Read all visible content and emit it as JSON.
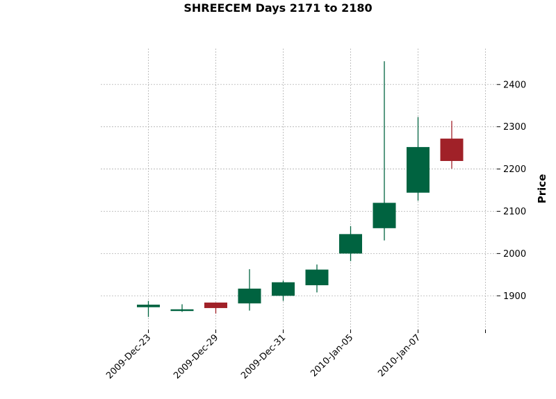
{
  "chart_data": {
    "type": "candlestick",
    "title": "SHREECEM Days 2171 to 2180",
    "ylabel": "Price",
    "xlabel": "",
    "ylim": [
      1820,
      2485
    ],
    "grid": true,
    "y_ticks": [
      1900,
      2000,
      2100,
      2200,
      2300,
      2400
    ],
    "x_tick_labels": [
      "2009-Dec-23",
      "2009-Dec-29",
      "2009-Dec-31",
      "2010-Jan-05",
      "2010-Jan-07",
      ""
    ],
    "colors": {
      "up": "#006340",
      "down": "#a02128"
    },
    "candles": [
      {
        "open": 1873,
        "high": 1888,
        "low": 1850,
        "close": 1879
      },
      {
        "open": 1864,
        "high": 1880,
        "low": 1862,
        "close": 1868
      },
      {
        "open": 1884,
        "high": 1884,
        "low": 1858,
        "close": 1871
      },
      {
        "open": 1882,
        "high": 1963,
        "low": 1865,
        "close": 1917
      },
      {
        "open": 1900,
        "high": 1936,
        "low": 1888,
        "close": 1932
      },
      {
        "open": 1925,
        "high": 1974,
        "low": 1908,
        "close": 1962
      },
      {
        "open": 2000,
        "high": 2065,
        "low": 1982,
        "close": 2046
      },
      {
        "open": 2060,
        "high": 2455,
        "low": 2031,
        "close": 2120
      },
      {
        "open": 2144,
        "high": 2323,
        "low": 2125,
        "close": 2252
      },
      {
        "open": 2272,
        "high": 2314,
        "low": 2201,
        "close": 2219
      }
    ]
  }
}
